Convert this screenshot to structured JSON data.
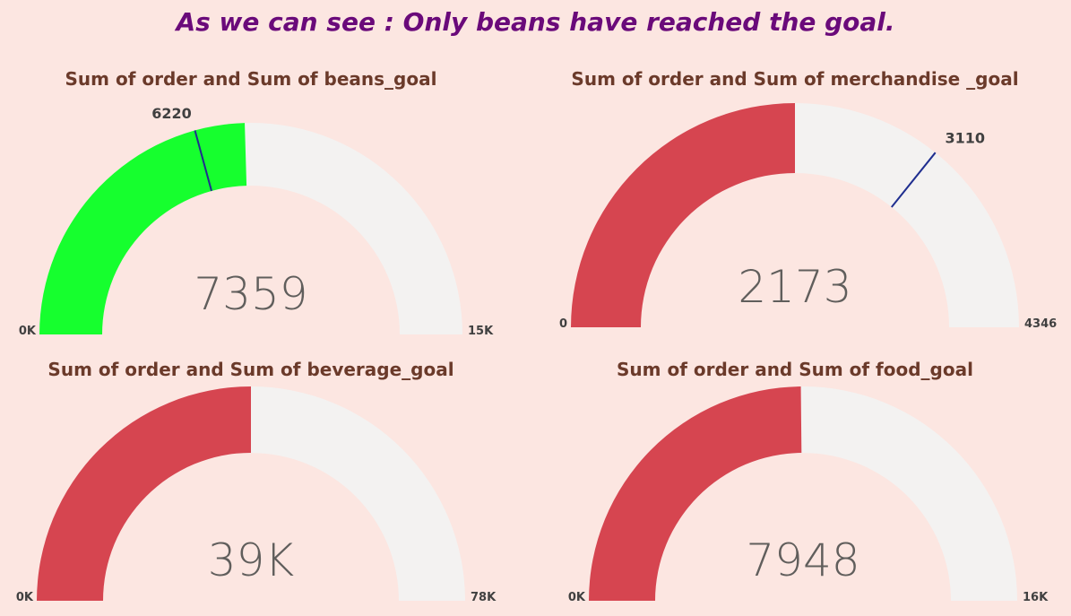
{
  "headline": "As we can see : Only beans have reached the goal.",
  "colors": {
    "reached": "#16FF2E",
    "not_reached": "#D64550",
    "track": "#F3F2F1",
    "target_line": "#1F2E8F"
  },
  "chart_data": [
    {
      "type": "gauge",
      "title": "Sum of order and Sum of beans_goal",
      "value": 7359,
      "value_label": "7359",
      "min": 0,
      "max": 15000,
      "min_label": "0K",
      "max_label": "15K",
      "target": 6220,
      "target_label": "6220",
      "reached": true
    },
    {
      "type": "gauge",
      "title": "Sum of order and Sum of merchandise _goal",
      "value": 2173,
      "value_label": "2173",
      "min": 0,
      "max": 4346,
      "min_label": "0",
      "max_label": "4346",
      "target": 3110,
      "target_label": "3110",
      "reached": false
    },
    {
      "type": "gauge",
      "title": "Sum of order and Sum of beverage_goal",
      "value": 39000,
      "value_label": "39K",
      "min": 0,
      "max": 78000,
      "min_label": "0K",
      "max_label": "78K",
      "reached": false
    },
    {
      "type": "gauge",
      "title": "Sum of order and Sum of food_goal",
      "value": 7948,
      "value_label": "7948",
      "min": 0,
      "max": 16000,
      "min_label": "0K",
      "max_label": "16K",
      "reached": false
    }
  ]
}
